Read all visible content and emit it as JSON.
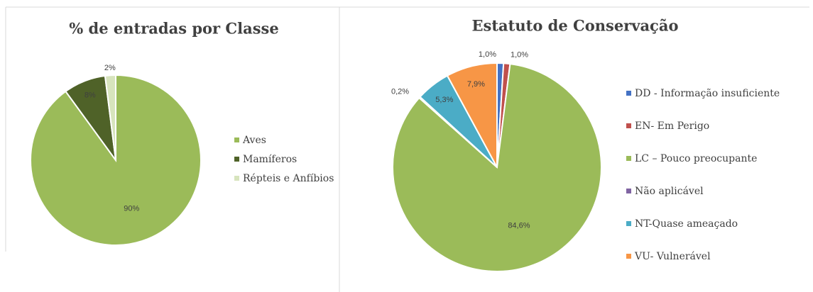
{
  "chart_data": [
    {
      "type": "pie",
      "title": "% de entradas por Classe",
      "categories": [
        "Aves",
        "Mamíferos",
        "Répteis e Anfíbios"
      ],
      "values": [
        90,
        8,
        2
      ],
      "value_labels": [
        "90%",
        "8%",
        "2%"
      ],
      "colors": [
        "#9bbb59",
        "#4f6228",
        "#d7e4bd"
      ],
      "legend": "right"
    },
    {
      "type": "pie",
      "title": "Estatuto de Conservação",
      "categories": [
        "DD - Informação insuficiente",
        "EN- Em Perigo",
        "LC – Pouco preocupante",
        "Não aplicável",
        "NT-Quase ameaçado",
        "VU- Vulnerável"
      ],
      "values": [
        1.0,
        1.0,
        84.6,
        0.2,
        5.3,
        7.9
      ],
      "value_labels": [
        "1,0%",
        "1,0%",
        "84,6%",
        "0,2%",
        "5,3%",
        "7,9%"
      ],
      "colors": [
        "#4472c4",
        "#c0504d",
        "#9bbb59",
        "#8064a2",
        "#4bacc6",
        "#f79646"
      ],
      "legend": "right"
    }
  ]
}
